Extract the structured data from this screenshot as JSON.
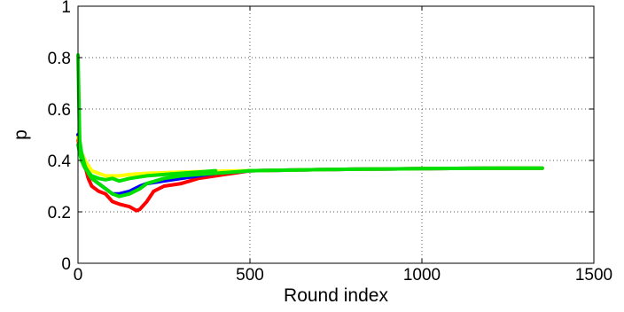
{
  "chart_data": {
    "type": "line",
    "title": "",
    "xlabel": "Round index",
    "ylabel": "p",
    "xlim": [
      0,
      1500
    ],
    "ylim": [
      0,
      1
    ],
    "xticks": [
      0,
      500,
      1000,
      1500
    ],
    "yticks": [
      0,
      0.2,
      0.4,
      0.6,
      0.8,
      1
    ],
    "xtick_labels": [
      "0",
      "500",
      "1000",
      "1500"
    ],
    "ytick_labels": [
      "0",
      "0.2",
      "0.4",
      "0.6",
      "0.8",
      "1"
    ],
    "grid": true,
    "legend": "none",
    "series": [
      {
        "color": "#ff0000",
        "x": [
          0,
          5,
          10,
          20,
          30,
          40,
          60,
          80,
          100,
          120,
          150,
          170,
          180,
          200,
          220,
          250,
          300,
          350,
          400,
          450,
          500,
          600,
          700,
          800,
          900,
          1000,
          1100,
          1200,
          1300,
          1350
        ],
        "y": [
          0.48,
          0.45,
          0.42,
          0.38,
          0.33,
          0.3,
          0.28,
          0.27,
          0.24,
          0.23,
          0.22,
          0.205,
          0.21,
          0.24,
          0.28,
          0.3,
          0.31,
          0.33,
          0.34,
          0.35,
          0.36,
          0.362,
          0.364,
          0.366,
          0.367,
          0.368,
          0.369,
          0.37,
          0.37,
          0.37
        ]
      },
      {
        "color": "#0000ff",
        "x": [
          0,
          5,
          10,
          20,
          30,
          40,
          60,
          80,
          100,
          120,
          150,
          180,
          200,
          250,
          300,
          350,
          400,
          450,
          500,
          600,
          700,
          800,
          900,
          1000,
          1100,
          1200,
          1300,
          1350
        ],
        "y": [
          0.5,
          0.46,
          0.43,
          0.4,
          0.36,
          0.33,
          0.31,
          0.29,
          0.27,
          0.27,
          0.28,
          0.3,
          0.31,
          0.32,
          0.33,
          0.34,
          0.35,
          0.355,
          0.36,
          0.362,
          0.364,
          0.366,
          0.367,
          0.368,
          0.369,
          0.37,
          0.37,
          0.37
        ]
      },
      {
        "color": "#ffff00",
        "x": [
          0,
          5,
          10,
          20,
          30,
          40,
          60,
          80,
          100,
          120,
          150,
          200,
          250,
          300,
          400,
          500,
          600,
          700,
          800,
          900,
          1000,
          1100,
          1200,
          1300,
          1350
        ],
        "y": [
          0.49,
          0.46,
          0.43,
          0.4,
          0.38,
          0.36,
          0.35,
          0.34,
          0.34,
          0.34,
          0.345,
          0.35,
          0.352,
          0.355,
          0.358,
          0.36,
          0.362,
          0.364,
          0.366,
          0.367,
          0.368,
          0.369,
          0.37,
          0.37,
          0.37
        ]
      },
      {
        "color": "#00e000",
        "x": [
          0,
          3,
          5,
          10,
          20,
          30,
          40,
          60,
          80,
          100,
          120,
          150,
          180,
          200,
          250,
          300,
          350,
          400,
          450,
          500,
          600,
          700,
          800,
          900,
          1000,
          1100,
          1200,
          1300,
          1350
        ],
        "y": [
          0.81,
          0.6,
          0.48,
          0.43,
          0.38,
          0.35,
          0.33,
          0.31,
          0.29,
          0.27,
          0.26,
          0.27,
          0.29,
          0.31,
          0.33,
          0.34,
          0.345,
          0.35,
          0.355,
          0.36,
          0.362,
          0.364,
          0.366,
          0.367,
          0.368,
          0.369,
          0.37,
          0.37,
          0.37
        ]
      },
      {
        "color": "#00e000",
        "x": [
          0,
          10,
          20,
          40,
          60,
          80,
          100,
          120,
          150,
          200,
          250,
          300,
          350,
          400
        ],
        "y": [
          0.46,
          0.4,
          0.37,
          0.34,
          0.33,
          0.325,
          0.33,
          0.32,
          0.33,
          0.34,
          0.345,
          0.35,
          0.355,
          0.36
        ]
      }
    ]
  }
}
